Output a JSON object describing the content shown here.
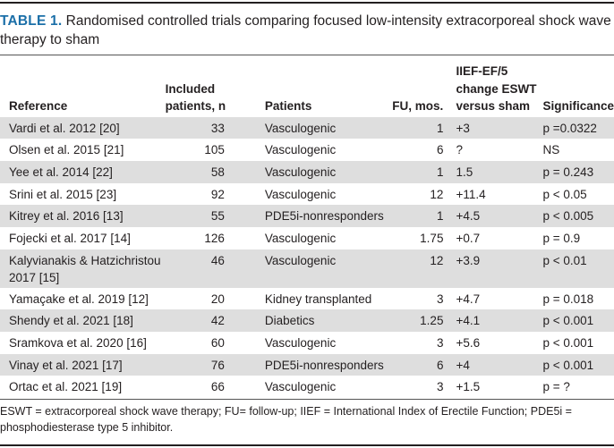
{
  "caption": {
    "label": "TABLE 1.",
    "text": "Randomised controlled trials comparing focused low-intensity extracorporeal shock wave therapy to sham"
  },
  "headers": {
    "reference": "Reference",
    "included": "Included patients, n",
    "patients": "Patients",
    "fu": "FU, mos.",
    "iief": "IIEF-EF/5 change ESWT versus sham",
    "significance": "Significance"
  },
  "rows": [
    {
      "reference": "Vardi et al. 2012 [20]",
      "n": "33",
      "patients": "Vasculogenic",
      "fu": "1",
      "iief": "+3",
      "significance": "p =0.0322"
    },
    {
      "reference": "Olsen et al. 2015 [21]",
      "n": "105",
      "patients": "Vasculogenic",
      "fu": "6",
      "iief": "?",
      "significance": "NS"
    },
    {
      "reference": "Yee et al. 2014 [22]",
      "n": "58",
      "patients": "Vasculogenic",
      "fu": "1",
      "iief": "1.5",
      "significance": "p = 0.243"
    },
    {
      "reference": "Srini et al. 2015 [23]",
      "n": "92",
      "patients": "Vasculogenic",
      "fu": "12",
      "iief": "+11.4",
      "significance": "p < 0.05"
    },
    {
      "reference": "Kitrey et al. 2016 [13]",
      "n": "55",
      "patients": "PDE5i-nonresponders",
      "fu": "1",
      "iief": "+4.5",
      "significance": "p < 0.005"
    },
    {
      "reference": "Fojecki et al. 2017 [14]",
      "n": "126",
      "patients": "Vasculogenic",
      "fu": "1.75",
      "iief": "+0.7",
      "significance": "p = 0.9"
    },
    {
      "reference": "Kalyvianakis & Hatzichristou 2017 [15]",
      "n": "46",
      "patients": "Vasculogenic",
      "fu": "12",
      "iief": "+3.9",
      "significance": "p < 0.01"
    },
    {
      "reference": "Yamaçake et al. 2019 [12]",
      "n": "20",
      "patients": "Kidney transplanted",
      "fu": "3",
      "iief": "+4.7",
      "significance": "p = 0.018"
    },
    {
      "reference": "Shendy et al. 2021 [18]",
      "n": "42",
      "patients": "Diabetics",
      "fu": "1.25",
      "iief": "+4.1",
      "significance": "p < 0.001"
    },
    {
      "reference": "Sramkova et al. 2020 [16]",
      "n": "60",
      "patients": "Vasculogenic",
      "fu": "3",
      "iief": "+5.6",
      "significance": "p < 0.001"
    },
    {
      "reference": "Vinay et al. 2021 [17]",
      "n": "76",
      "patients": "PDE5i-nonresponders",
      "fu": "6",
      "iief": "+4",
      "significance": "p < 0.001"
    },
    {
      "reference": "Ortac et al. 2021 [19]",
      "n": "66",
      "patients": "Vasculogenic",
      "fu": "3",
      "iief": "+1.5",
      "significance": "p = ?"
    }
  ],
  "footnote": "ESWT = extracorporeal shock wave therapy; FU= follow-up; IIEF = International Index of Erectile Function; PDE5i = phosphodiesterase type 5 inhibitor."
}
